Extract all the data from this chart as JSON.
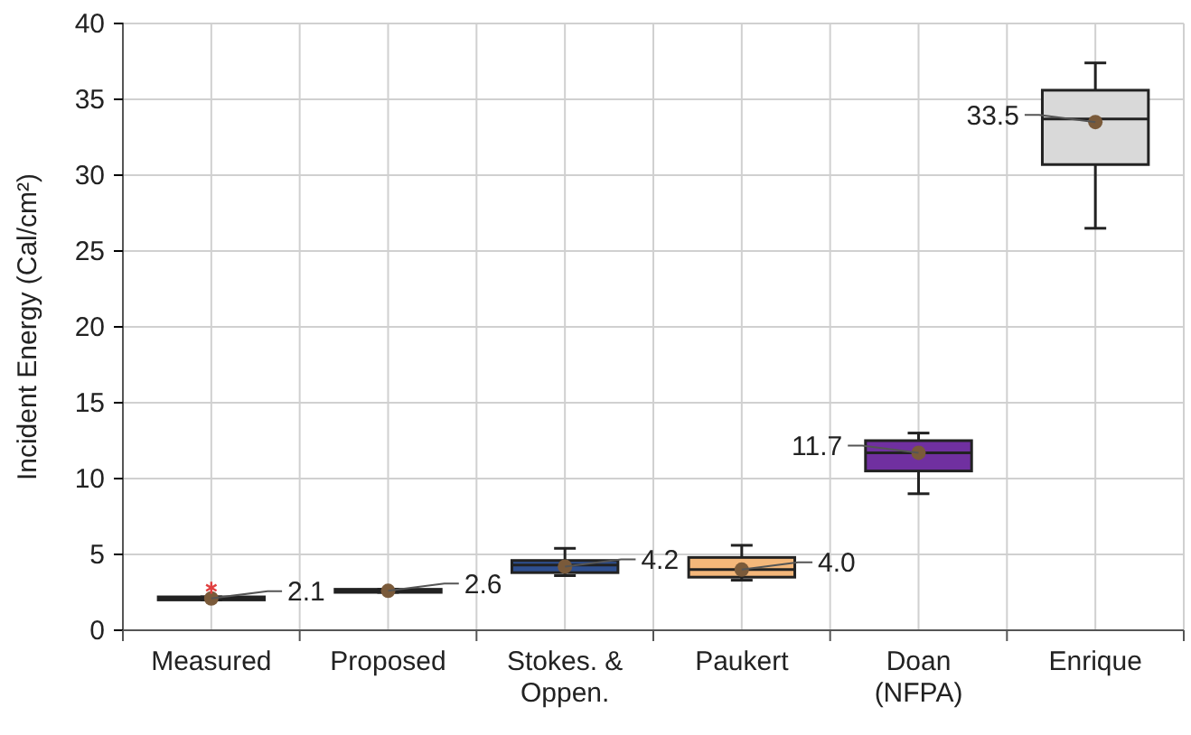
{
  "chart_data": {
    "type": "box",
    "ylabel": "Incident Energy (Cal/cm²)",
    "categories": [
      "Measured",
      "Proposed",
      "Stokes. &\nOppen.",
      "Paukert",
      "Doan\n(NFPA)",
      "Enrique"
    ],
    "colors": [
      "#000000",
      "#000000",
      "#2f4f8f",
      "#f4b77a",
      "#7030a0",
      "#d9d9d9"
    ],
    "boxes": [
      {
        "low": 2.0,
        "q1": 2.0,
        "median": 2.1,
        "q3": 2.2,
        "high": 2.2,
        "mean": 2.1,
        "outliers": [
          2.8
        ]
      },
      {
        "low": 2.5,
        "q1": 2.5,
        "median": 2.6,
        "q3": 2.7,
        "high": 2.7,
        "mean": 2.6
      },
      {
        "low": 3.6,
        "q1": 3.8,
        "median": 4.3,
        "q3": 4.6,
        "high": 5.4,
        "mean": 4.2
      },
      {
        "low": 3.3,
        "q1": 3.5,
        "median": 4.0,
        "q3": 4.8,
        "high": 5.6,
        "mean": 4.0
      },
      {
        "low": 9.0,
        "q1": 10.5,
        "median": 11.7,
        "q3": 12.5,
        "high": 13.0,
        "mean": 11.7
      },
      {
        "low": 26.5,
        "q1": 30.7,
        "median": 33.7,
        "q3": 35.6,
        "high": 37.4,
        "mean": 33.5
      }
    ],
    "annotations": [
      {
        "text": "2.1",
        "x": "Measured",
        "y": 2.1
      },
      {
        "text": "2.6",
        "x": "Proposed",
        "y": 2.6
      },
      {
        "text": "4.2",
        "x": "Stokes. &\nOppen.",
        "y": 4.2
      },
      {
        "text": "4.0",
        "x": "Paukert",
        "y": 4.0
      },
      {
        "text": "11.7",
        "x": "Doan\n(NFPA)",
        "y": 11.7
      },
      {
        "text": "33.5",
        "x": "Enrique",
        "y": 33.5
      }
    ],
    "ylim": [
      0,
      40
    ],
    "yticks": [
      0,
      5,
      10,
      15,
      20,
      25,
      30,
      35,
      40
    ],
    "grid": true
  }
}
